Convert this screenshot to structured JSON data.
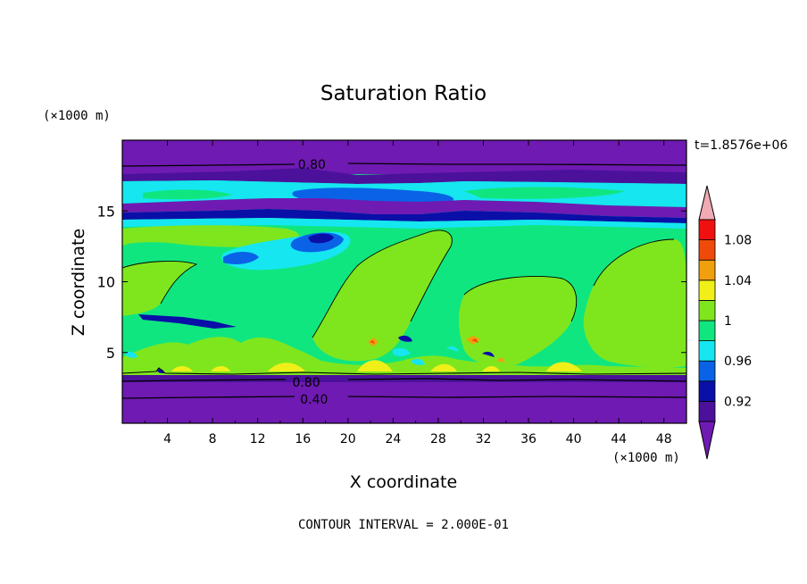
{
  "chart_data": {
    "type": "heatmap",
    "title": "Saturation Ratio",
    "xlabel": "X coordinate",
    "ylabel": "Z coordinate",
    "x_unit": "(×1000 m)",
    "y_unit": "(×1000 m)",
    "xlim": [
      0,
      50
    ],
    "ylim": [
      0,
      20
    ],
    "x_ticks": [
      4,
      8,
      12,
      16,
      20,
      24,
      28,
      32,
      36,
      40,
      44,
      48
    ],
    "y_ticks": [
      5,
      10,
      15
    ],
    "time_label": "t=1.8576e+06",
    "contour_interval_text": "CONTOUR INTERVAL = 2.000E-01",
    "contour_line_labels": [
      {
        "text": "0.80",
        "x": 16.8,
        "z": 18.3
      },
      {
        "text": "0.80",
        "x": 16.3,
        "z": 2.9
      },
      {
        "text": "0.40",
        "x": 17.0,
        "z": 1.7
      }
    ],
    "colorbar": {
      "levels": [
        0.92,
        0.94,
        0.96,
        0.98,
        1.0,
        1.02,
        1.04,
        1.06,
        1.08,
        1.1
      ],
      "labels": [
        "0.92",
        "0.96",
        "1",
        "1.04",
        "1.08"
      ],
      "colors": [
        "#6f1ab3",
        "#4b119a",
        "#0a0fa8",
        "#0a63e6",
        "#15e6f0",
        "#10e67f",
        "#7fe61e",
        "#f0f018",
        "#f0a00c",
        "#f04a0a",
        "#f01010",
        "#f0aab4"
      ],
      "extend": "both"
    },
    "colors": {
      "background": "#ffffff",
      "frame": "#000000"
    }
  }
}
